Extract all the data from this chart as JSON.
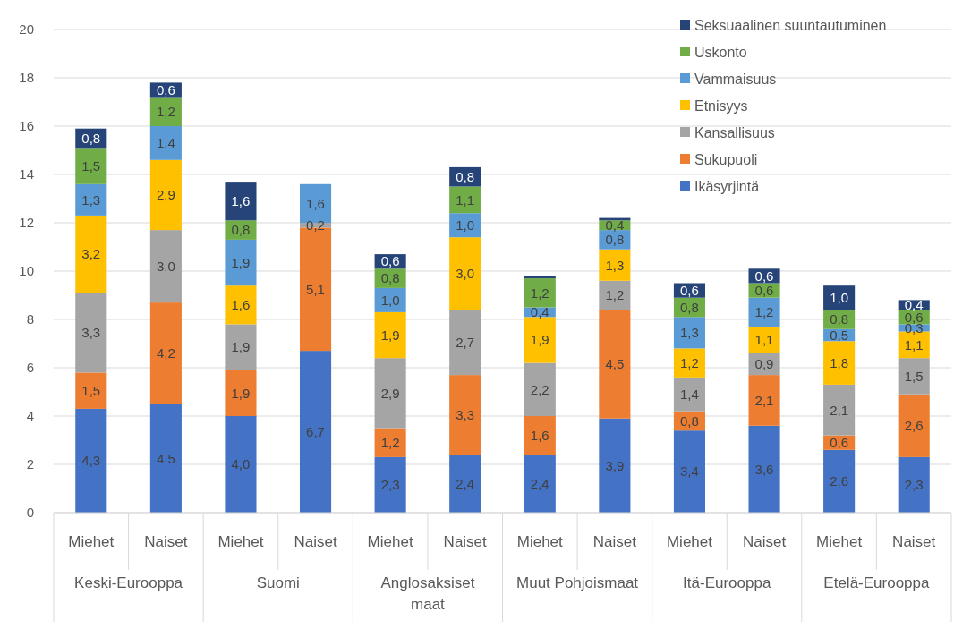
{
  "chart_data": {
    "type": "bar",
    "stacked": true,
    "categories": [
      "Miehet",
      "Naiset",
      "Miehet",
      "Naiset",
      "Miehet",
      "Naiset",
      "Miehet",
      "Naiset",
      "Miehet",
      "Naiset",
      "Miehet",
      "Naiset"
    ],
    "annotations": [
      "Keski-Eurooppa",
      "Suomi",
      "Anglosaksiset maat",
      "Muut Pohjoismaat",
      "Itä-Eurooppa",
      "Etelä-Eurooppa"
    ],
    "series": [
      {
        "name": "Ikäsyrjintä",
        "color": "#4472c4",
        "values": [
          4.3,
          4.5,
          4.0,
          6.7,
          2.3,
          2.4,
          2.4,
          3.9,
          3.4,
          3.6,
          2.6,
          2.3
        ],
        "value_labels": [
          "4,3",
          "4,5",
          "4,0",
          "6,7",
          "2,3",
          "2,4",
          "2,4",
          "3,9",
          "3,4",
          "3,6",
          "2,6",
          "2,3"
        ]
      },
      {
        "name": "Sukupuoli",
        "color": "#ed7d31",
        "values": [
          1.5,
          4.2,
          1.9,
          5.1,
          1.2,
          3.3,
          1.6,
          4.5,
          0.8,
          2.1,
          0.6,
          2.6
        ],
        "value_labels": [
          "1,5",
          "4,2",
          "1,9",
          "5,1",
          "1,2",
          "3,3",
          "1,6",
          "4,5",
          "0,8",
          "2,1",
          "0,6",
          "2,6"
        ]
      },
      {
        "name": "Kansallisuus",
        "color": "#a5a5a5",
        "values": [
          3.3,
          3.0,
          1.9,
          0.2,
          2.9,
          2.7,
          2.2,
          1.2,
          1.4,
          0.9,
          2.1,
          1.5
        ],
        "value_labels": [
          "3,3",
          "3,0",
          "1,9",
          "0,2",
          "2,9",
          "2,7",
          "2,2",
          "1,2",
          "1,4",
          "0,9",
          "2,1",
          "1,5"
        ]
      },
      {
        "name": "Etnisyys",
        "color": "#ffc000",
        "values": [
          3.2,
          2.9,
          1.6,
          null,
          1.9,
          3.0,
          1.9,
          1.3,
          1.2,
          1.1,
          1.8,
          1.1
        ],
        "value_labels": [
          "3,2",
          "2,9",
          "1,6",
          null,
          "1,9",
          "3,0",
          "1,9",
          "1,3",
          "1,2",
          "1,1",
          "1,8",
          "1,1"
        ]
      },
      {
        "name": "Vammaisuus",
        "color": "#5b9bd5",
        "values": [
          1.3,
          1.4,
          1.9,
          1.6,
          1.0,
          1.0,
          0.4,
          0.8,
          1.3,
          1.2,
          0.5,
          0.3
        ],
        "value_labels": [
          "1,3",
          "1,4",
          "1,9",
          "1,6",
          "1,0",
          "1,0",
          "0,4",
          "0,8",
          "1,3",
          "1,2",
          "0,5",
          "0,3"
        ]
      },
      {
        "name": "Uskonto",
        "color": "#70ad47",
        "values": [
          1.5,
          1.2,
          0.8,
          null,
          0.8,
          1.1,
          1.2,
          0.4,
          0.8,
          0.6,
          0.8,
          0.6
        ],
        "value_labels": [
          "1,5",
          "1,2",
          "0,8",
          null,
          "0,8",
          "1,1",
          "1,2",
          "0,4",
          "0,8",
          "0,6",
          "0,8",
          "0,6"
        ]
      },
      {
        "name": "Seksuaalinen suuntautuminen",
        "color": "#264478",
        "values": [
          0.8,
          0.6,
          1.6,
          null,
          0.6,
          0.8,
          0.1,
          0.1,
          0.6,
          0.6,
          1.0,
          0.4
        ],
        "value_labels": [
          "0,8",
          "0,6",
          "1,6",
          null,
          "0,6",
          "0,8",
          null,
          null,
          "0,6",
          "0,6",
          "1,0",
          "0,4"
        ]
      }
    ],
    "ylim": [
      0,
      20
    ],
    "yticks": [
      0,
      2,
      4,
      6,
      8,
      10,
      12,
      14,
      16,
      18,
      20
    ],
    "grid": "y",
    "legend": "top right"
  }
}
